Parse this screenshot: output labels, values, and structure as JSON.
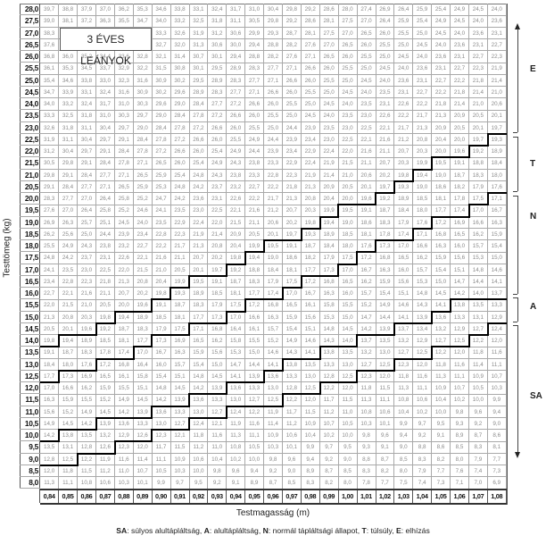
{
  "title_box": "3 ÉVES LEÁNYOK",
  "y_axis_label": "Testtömeg (kg)",
  "x_axis_label": "Testmagasság (m)",
  "table": {
    "weights_kg": [
      28.0,
      27.5,
      27.0,
      26.5,
      26.0,
      25.5,
      25.0,
      24.5,
      24.0,
      23.5,
      23.0,
      22.5,
      22.0,
      21.5,
      21.0,
      20.5,
      20.0,
      19.5,
      19.0,
      18.5,
      18.0,
      17.5,
      17.0,
      16.5,
      16.0,
      15.5,
      15.0,
      14.5,
      14.0,
      13.5,
      13.0,
      12.5,
      12.0,
      11.5,
      11.0,
      10.5,
      10.0,
      9.5,
      9.0,
      8.5,
      8.0
    ],
    "heights_m": [
      0.84,
      0.85,
      0.86,
      0.87,
      0.88,
      0.89,
      0.9,
      0.91,
      0.92,
      0.93,
      0.94,
      0.95,
      0.96,
      0.97,
      0.98,
      0.99,
      1.0,
      1.01,
      1.02,
      1.03,
      1.04,
      1.05,
      1.06,
      1.07,
      1.08
    ],
    "cell_value": "testtömeg / testmagasság²",
    "decimal_separator": ","
  },
  "category_boundaries_min_weight_above_kg": {
    "E_T": [
      14.0,
      14.5,
      14.5,
      15.0,
      15.5,
      15.5,
      16.0,
      16.5,
      17.0,
      17.0,
      17.5,
      18.0,
      18.5,
      18.5,
      19.0,
      19.5,
      20.0,
      20.0,
      20.5,
      21.0,
      21.5,
      22.0,
      22.0,
      22.5,
      23.0
    ],
    "T_N": [
      12.5,
      13.0,
      13.0,
      13.5,
      13.5,
      14.0,
      14.5,
      14.5,
      15.0,
      15.0,
      15.5,
      16.0,
      16.0,
      16.5,
      17.0,
      17.0,
      17.5,
      18.0,
      18.5,
      18.5,
      19.0,
      19.5,
      19.5,
      20.0,
      20.5
    ],
    "N_A": [
      10.0,
      10.5,
      10.5,
      11.0,
      11.0,
      11.0,
      11.5,
      11.5,
      12.0,
      12.0,
      12.5,
      12.5,
      13.0,
      13.5,
      13.5,
      14.0,
      14.0,
      14.5,
      14.5,
      15.0,
      15.0,
      15.5,
      16.0,
      16.0,
      16.0
    ],
    "A_SA": [
      9.0,
      9.0,
      9.5,
      9.5,
      10.0,
      10.0,
      10.5,
      10.5,
      11.0,
      11.0,
      11.5,
      11.5,
      11.5,
      12.0,
      12.0,
      12.5,
      12.5,
      13.0,
      13.0,
      13.5,
      13.5,
      14.0,
      14.0,
      14.5,
      15.0
    ]
  },
  "side_categories": [
    "E",
    "T",
    "N",
    "A",
    "SA"
  ],
  "legend": [
    {
      "code": "SA",
      "text": "súlyos alultápláltság,"
    },
    {
      "code": "A",
      "text": "alultápláltság,"
    },
    {
      "code": "N",
      "text": "normál tápláltsági állapot,"
    },
    {
      "code": "T",
      "text": "túlsúly,"
    },
    {
      "code": "E",
      "text": "elhízás"
    }
  ]
}
